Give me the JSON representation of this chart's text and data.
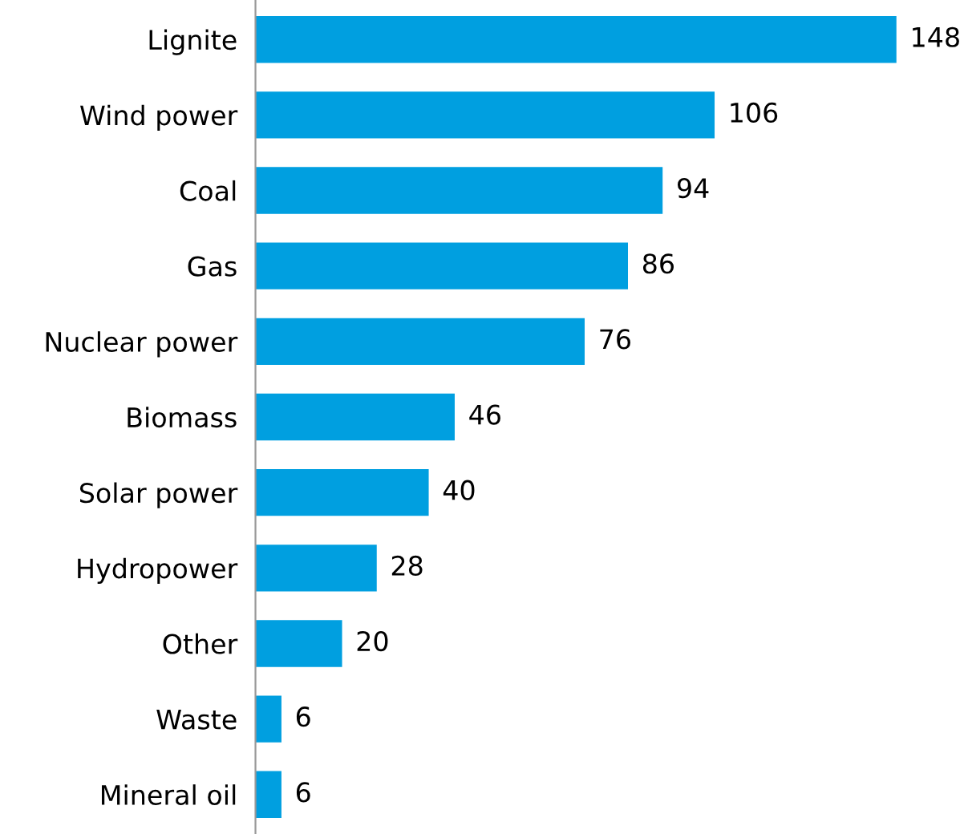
{
  "chart_data": {
    "type": "bar",
    "orientation": "horizontal",
    "categories": [
      "Lignite",
      "Wind power",
      "Coal",
      "Gas",
      "Nuclear power",
      "Biomass",
      "Solar power",
      "Hydropower",
      "Other",
      "Waste",
      "Mineral oil"
    ],
    "values": [
      148,
      106,
      94,
      86,
      76,
      46,
      40,
      28,
      20,
      6,
      6
    ],
    "color": "#009fe0",
    "data_labels": true,
    "grid": false,
    "legend": false
  }
}
